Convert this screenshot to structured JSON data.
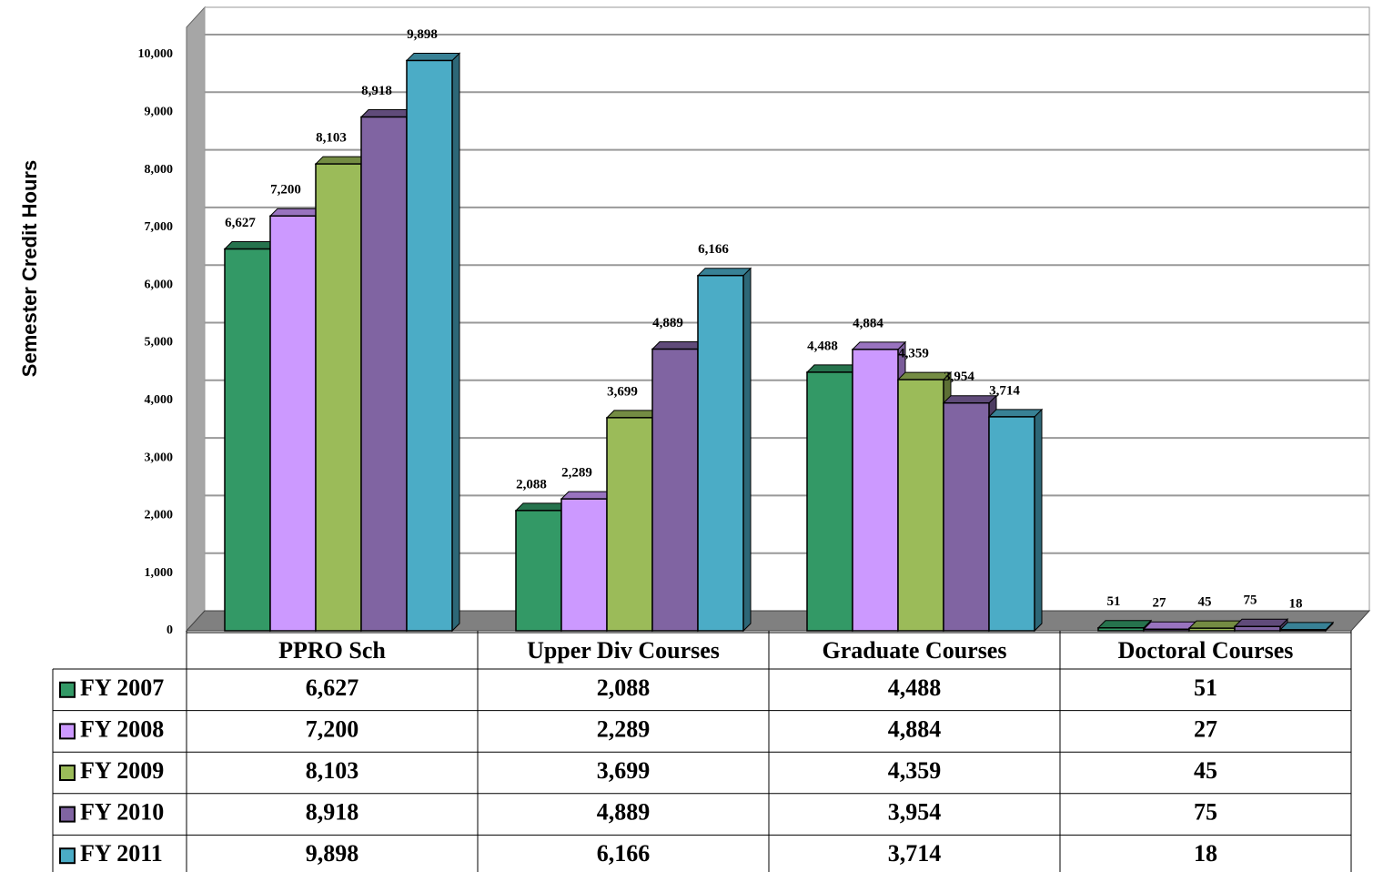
{
  "chart_data": {
    "type": "bar3d",
    "y_label": "Semester Credit Hours",
    "categories": [
      "PPRO Sch",
      "Upper Div Courses",
      "Graduate Courses",
      "Doctoral Courses"
    ],
    "series": [
      {
        "name": "FY 2007",
        "color": "#339966",
        "values": [
          6627,
          2088,
          4488,
          51
        ],
        "value_labels": [
          "6,627",
          "2,088",
          "4,488",
          "51"
        ]
      },
      {
        "name": "FY 2008",
        "color": "#cc99ff",
        "values": [
          7200,
          2289,
          4884,
          27
        ],
        "value_labels": [
          "7,200",
          "2,289",
          "4,884",
          "27"
        ]
      },
      {
        "name": "FY 2009",
        "color": "#9bbb59",
        "values": [
          8103,
          3699,
          4359,
          45
        ],
        "value_labels": [
          "8,103",
          "3,699",
          "4,359",
          "45"
        ]
      },
      {
        "name": "FY 2010",
        "color": "#8064a2",
        "values": [
          8918,
          4889,
          3954,
          75
        ],
        "value_labels": [
          "8,918",
          "4,889",
          "3,954",
          "75"
        ]
      },
      {
        "name": "FY 2011",
        "color": "#4bacc6",
        "values": [
          9898,
          6166,
          3714,
          18
        ],
        "value_labels": [
          "9,898",
          "6,166",
          "3,714",
          "18"
        ]
      }
    ],
    "ylim": [
      0,
      10000
    ],
    "yticks": [
      0,
      {
        "value": 1000,
        "label": "1,000"
      },
      {
        "value": 2000,
        "label": "2,000"
      },
      {
        "value": 3000,
        "label": "3,000"
      },
      {
        "value": 4000,
        "label": "4,000"
      },
      {
        "value": 5000,
        "label": "5,000"
      },
      {
        "value": 6000,
        "label": "6,000"
      },
      {
        "value": 7000,
        "label": "7,000"
      },
      {
        "value": 8000,
        "label": "8,000"
      },
      {
        "value": 9000,
        "label": "9,000"
      },
      {
        "value": 10000,
        "label": "10,000"
      }
    ],
    "grid": true
  }
}
